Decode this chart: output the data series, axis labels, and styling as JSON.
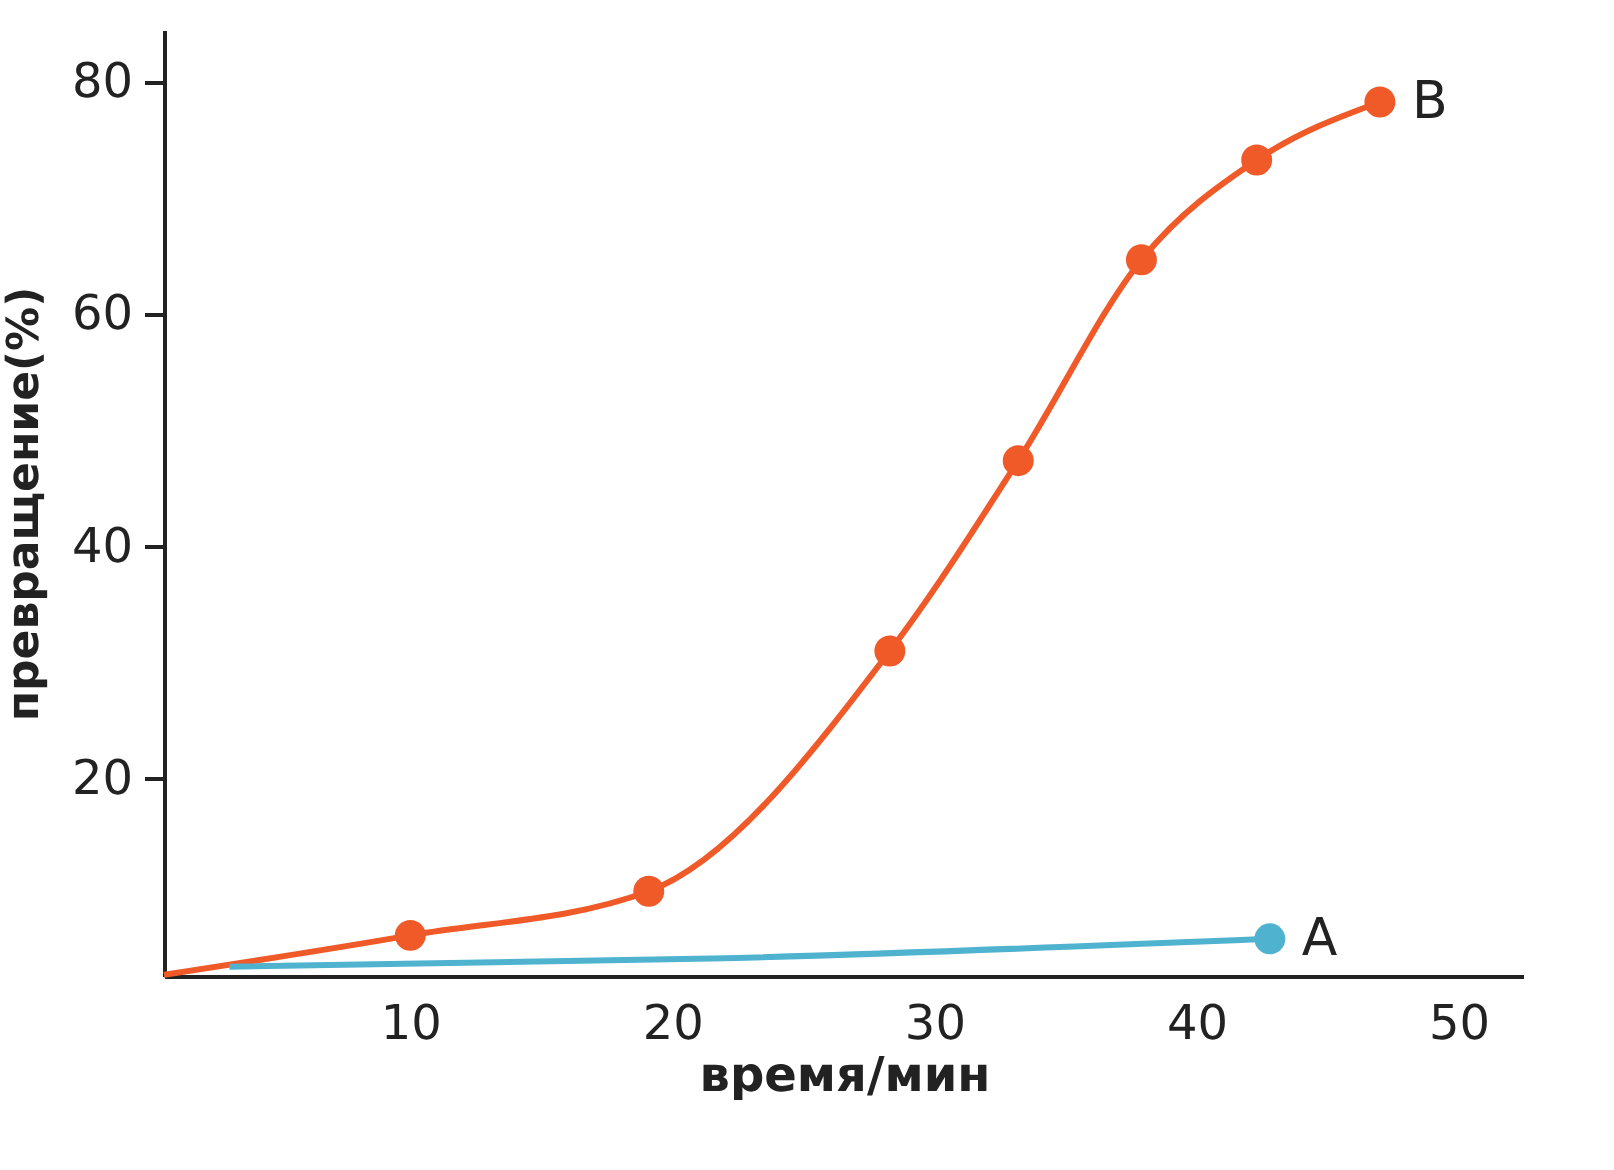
{
  "chart_data": {
    "type": "line",
    "xlabel": "время/мин",
    "ylabel": "превращение(%)",
    "xlim": [
      0.6,
      52.5
    ],
    "ylim": [
      3,
      84.5
    ],
    "xticks": [
      10,
      20,
      30,
      40,
      50
    ],
    "yticks": [
      20,
      40,
      60,
      80
    ],
    "grid": false,
    "legend": false,
    "marker": "none",
    "series": [
      {
        "color": "#f05a28",
        "x": [
          0.6,
          10,
          19.1,
          28.3,
          33.2,
          37.9,
          42.3,
          47
        ],
        "values": [
          3.1,
          6.5,
          10.3,
          31,
          47.4,
          64.7,
          73.3,
          78.3
        ]
      },
      {
        "type": "scatter",
        "name": "B",
        "marker": "circle",
        "color": "#f05a28",
        "x": [
          10,
          19.1,
          28.3,
          33.2,
          37.9,
          42.3,
          47
        ],
        "values": [
          6.5,
          10.3,
          31,
          47.4,
          64.7,
          73.3,
          78.3
        ]
      },
      {
        "color": "#4fb3cf",
        "x": [
          3.1,
          21.5,
          42.8
        ],
        "values": [
          3.8,
          4.5,
          6.2
        ]
      },
      {
        "type": "scatter",
        "name": "A",
        "marker": "circle",
        "color": "#4fb3cf",
        "x": [
          42.8
        ],
        "values": [
          6.2
        ]
      }
    ]
  }
}
